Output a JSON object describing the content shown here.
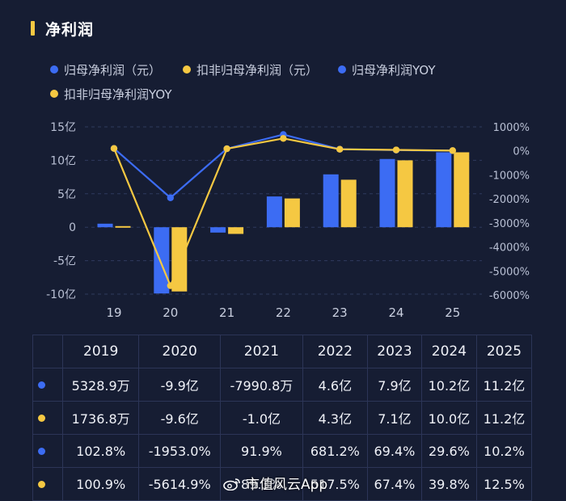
{
  "header": {
    "title": "净利润"
  },
  "colors": {
    "blue": "#3c6cf3",
    "yellow": "#f5c842",
    "accent": "#f5c842"
  },
  "legend": [
    {
      "label": "归母净利润（元）",
      "color": "#3c6cf3"
    },
    {
      "label": "扣非归母净利润（元）",
      "color": "#f5c842"
    },
    {
      "label": "归母净利润YOY",
      "color": "#3c6cf3"
    },
    {
      "label": "扣非归母净利润YOY",
      "color": "#f5c842"
    }
  ],
  "chart_data": {
    "type": "bar",
    "categories": [
      "19",
      "20",
      "21",
      "22",
      "23",
      "24",
      "25"
    ],
    "y_left_ticks": [
      "15亿",
      "10亿",
      "5亿",
      "0",
      "-5亿",
      "-10亿"
    ],
    "y_left_range": [
      -10,
      15
    ],
    "y_right_ticks": [
      "1000%",
      "0%",
      "-1000%",
      "-2000%",
      "-3000%",
      "-4000%",
      "-5000%",
      "-6000%"
    ],
    "y_right_range": [
      -6000,
      1000
    ],
    "bar_series": [
      {
        "name": "归母净利润（元）",
        "color": "#3c6cf3",
        "values": [
          0.53,
          -9.9,
          -0.8,
          4.6,
          7.9,
          10.2,
          11.2
        ]
      },
      {
        "name": "扣非归母净利润（元）",
        "color": "#f5c842",
        "values": [
          0.17,
          -9.6,
          -1.0,
          4.3,
          7.1,
          10.0,
          11.2
        ]
      }
    ],
    "line_series": [
      {
        "name": "归母净利润YOY",
        "color": "#3c6cf3",
        "values": [
          102.8,
          -1953.0,
          91.9,
          681.2,
          69.4,
          29.6,
          10.2
        ]
      },
      {
        "name": "扣非归母净利润YOY",
        "color": "#f5c842",
        "values": [
          100.9,
          -5614.9,
          89.3,
          517.5,
          67.4,
          39.8,
          12.5
        ]
      }
    ]
  },
  "table": {
    "headers": [
      "2019",
      "2020",
      "2021",
      "2022",
      "2023",
      "2024",
      "2025"
    ],
    "rows": [
      {
        "color": "#3c6cf3",
        "cells": [
          "5328.9万",
          "-9.9亿",
          "-7990.8万",
          "4.6亿",
          "7.9亿",
          "10.2亿",
          "11.2亿"
        ]
      },
      {
        "color": "#f5c842",
        "cells": [
          "1736.8万",
          "-9.6亿",
          "-1.0亿",
          "4.3亿",
          "7.1亿",
          "10.0亿",
          "11.2亿"
        ]
      },
      {
        "color": "#3c6cf3",
        "cells": [
          "102.8%",
          "-1953.0%",
          "91.9%",
          "681.2%",
          "69.4%",
          "29.6%",
          "10.2%"
        ]
      },
      {
        "color": "#f5c842",
        "cells": [
          "100.9%",
          "-5614.9%",
          "89.3%",
          "517.5%",
          "67.4%",
          "39.8%",
          "12.5%"
        ]
      }
    ]
  },
  "watermark": {
    "text": "市值风云App",
    "icon": "weibo-icon"
  }
}
